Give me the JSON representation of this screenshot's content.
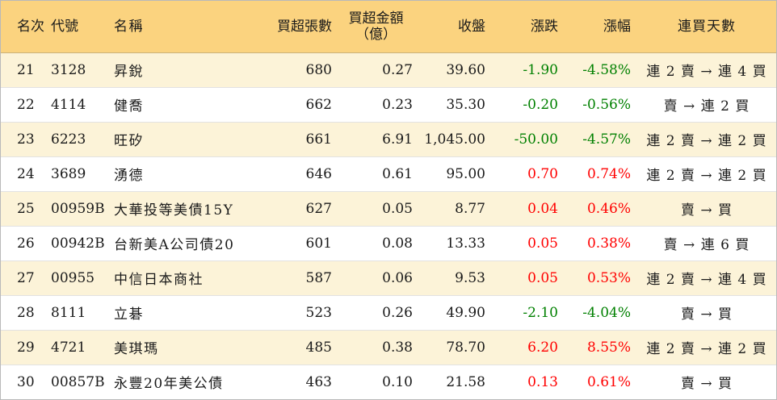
{
  "table": {
    "headers": {
      "rank": "名次",
      "code": "代號",
      "name": "名稱",
      "net_buy_lots": "買超張數",
      "net_buy_amount_line1": "買超金額",
      "net_buy_amount_line2": "（億）",
      "close": "收盤",
      "change": "漲跌",
      "change_pct": "漲幅",
      "consecutive_days": "連買天數"
    },
    "colors": {
      "up": "#ff0000",
      "down": "#008000",
      "header_bg": "#fbd37f",
      "odd_row_bg": "#fcf3d8"
    },
    "rows": [
      {
        "rank": "21",
        "code": "3128",
        "name": "昇銳",
        "lots": "680",
        "amount": "0.27",
        "close": "39.60",
        "change": "-1.90",
        "pct": "-4.58%",
        "dir": "down",
        "days": "連 2 賣 → 連 4 買"
      },
      {
        "rank": "22",
        "code": "4114",
        "name": "健喬",
        "lots": "662",
        "amount": "0.23",
        "close": "35.30",
        "change": "-0.20",
        "pct": "-0.56%",
        "dir": "down",
        "days": "賣 → 連 2 買"
      },
      {
        "rank": "23",
        "code": "6223",
        "name": "旺矽",
        "lots": "661",
        "amount": "6.91",
        "close": "1,045.00",
        "change": "-50.00",
        "pct": "-4.57%",
        "dir": "down",
        "days": "連 2 賣 → 連 2 買"
      },
      {
        "rank": "24",
        "code": "3689",
        "name": "湧德",
        "lots": "646",
        "amount": "0.61",
        "close": "95.00",
        "change": "0.70",
        "pct": "0.74%",
        "dir": "up",
        "days": "連 2 賣 → 連 2 買"
      },
      {
        "rank": "25",
        "code": "00959B",
        "name": "大華投等美債15Y",
        "lots": "627",
        "amount": "0.05",
        "close": "8.77",
        "change": "0.04",
        "pct": "0.46%",
        "dir": "up",
        "days": "賣 → 買"
      },
      {
        "rank": "26",
        "code": "00942B",
        "name": "台新美A公司債20",
        "lots": "601",
        "amount": "0.08",
        "close": "13.33",
        "change": "0.05",
        "pct": "0.38%",
        "dir": "up",
        "days": "賣 → 連 6 買"
      },
      {
        "rank": "27",
        "code": "00955",
        "name": "中信日本商社",
        "lots": "587",
        "amount": "0.06",
        "close": "9.53",
        "change": "0.05",
        "pct": "0.53%",
        "dir": "up",
        "days": "連 2 賣 → 連 4 買"
      },
      {
        "rank": "28",
        "code": "8111",
        "name": "立碁",
        "lots": "523",
        "amount": "0.26",
        "close": "49.90",
        "change": "-2.10",
        "pct": "-4.04%",
        "dir": "down",
        "days": "賣 → 買"
      },
      {
        "rank": "29",
        "code": "4721",
        "name": "美琪瑪",
        "lots": "485",
        "amount": "0.38",
        "close": "78.70",
        "change": "6.20",
        "pct": "8.55%",
        "dir": "up",
        "days": "連 2 賣 → 連 2 買"
      },
      {
        "rank": "30",
        "code": "00857B",
        "name": "永豐20年美公債",
        "lots": "463",
        "amount": "0.10",
        "close": "21.58",
        "change": "0.13",
        "pct": "0.61%",
        "dir": "up",
        "days": "賣 → 買"
      }
    ]
  }
}
